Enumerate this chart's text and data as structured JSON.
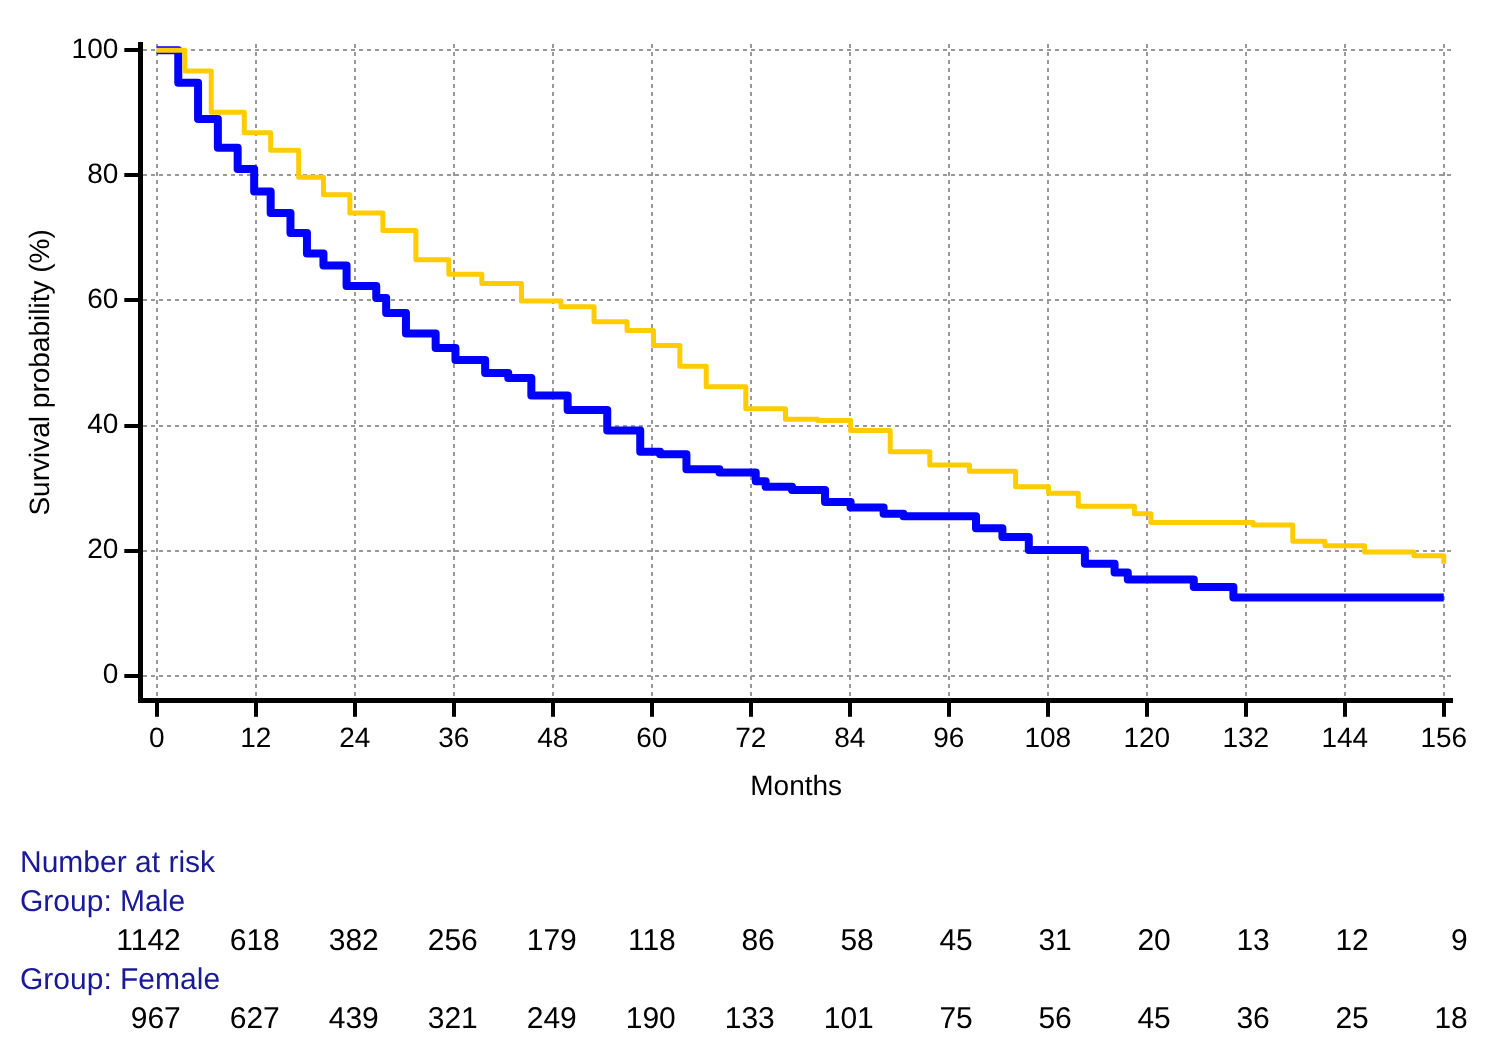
{
  "chart_data": {
    "type": "step",
    "xlabel": "Months",
    "ylabel": "Survival probability (%)",
    "xlim": [
      -2,
      157
    ],
    "ylim": [
      -4,
      101
    ],
    "xticks": [
      0,
      12,
      24,
      36,
      48,
      60,
      72,
      84,
      96,
      108,
      120,
      132,
      144,
      156
    ],
    "yticks": [
      0,
      20,
      40,
      60,
      80,
      100
    ],
    "grid": true,
    "legend": false,
    "series": [
      {
        "color": "#0000ff",
        "x": [
          0,
          2.6,
          5,
          7.4,
          9.8,
          11.8,
          13.8,
          16.2,
          18.2,
          20.2,
          23,
          26.6,
          27.8,
          30.2,
          33.8,
          36.2,
          39.8,
          42.6,
          45.4,
          49.8,
          52.6,
          54.6,
          58.6,
          61,
          64.2,
          68.2,
          72.6,
          73.8,
          77,
          81,
          84.1,
          88.1,
          90.5,
          98.1,
          99.3,
          102.5,
          105.7,
          110.9,
          112.5,
          116.1,
          117.7,
          124.9,
          125.7,
          130.5,
          156
        ],
        "values": [
          100,
          94.8,
          89,
          84.4,
          81,
          77.4,
          74,
          70.8,
          67.5,
          65.6,
          62.3,
          60.4,
          58,
          54.7,
          52.4,
          50.5,
          48.4,
          47.6,
          44.8,
          42.5,
          42.5,
          39.2,
          35.8,
          35.4,
          33,
          32.5,
          31.1,
          30.2,
          29.7,
          27.8,
          26.9,
          25.9,
          25.5,
          25.5,
          23.6,
          22.2,
          20.1,
          20.1,
          17.9,
          16.5,
          15.4,
          15.4,
          14.2,
          12.5,
          12.5
        ]
      },
      {
        "color": "#ffcc00",
        "x": [
          0,
          3.4,
          6.6,
          10.6,
          13.8,
          17.2,
          20.2,
          23.4,
          27.4,
          31.4,
          35.4,
          39.4,
          44.2,
          49,
          53,
          57,
          60.2,
          63.4,
          66.6,
          71.4,
          76.2,
          80.1,
          84.1,
          88.9,
          93.7,
          98.5,
          104.1,
          108.1,
          111.7,
          118.5,
          120.5,
          132.9,
          137.7,
          141.6,
          146.4,
          152.4,
          156
        ],
        "values": [
          100,
          96.7,
          90.1,
          86.8,
          84,
          79.7,
          76.9,
          74,
          71.2,
          66.5,
          64.2,
          62.7,
          59.9,
          59,
          56.6,
          55.2,
          52.8,
          49.5,
          46.2,
          42.7,
          41,
          40.8,
          39.2,
          35.8,
          33.7,
          32.7,
          30.2,
          29.2,
          27.1,
          25.9,
          24.5,
          24.1,
          21.5,
          20.8,
          19.8,
          19.2,
          17.9
        ]
      }
    ],
    "annotations": [
      "Number at risk",
      "Group: Male",
      "1142 618 382 256 179 118 86 58 45 31 20 13 12 9",
      "Group: Female",
      "967 627 439 321 249 190 133 101 75 56 45 36 25 18"
    ]
  }
}
